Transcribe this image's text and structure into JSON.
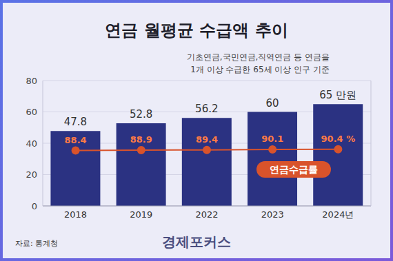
{
  "chart_data": {
    "type": "bar",
    "title": "연금 월평균 수급액 추이",
    "subtitle": [
      "기초연금,국민연금,직역연금 등 연금을",
      "1개 이상 수급한 65세 이상 인구 기준"
    ],
    "source": "자료: 통계청",
    "brand": "경제포커스",
    "categories": [
      "2018",
      "2019",
      "2022",
      "2023",
      "2024년"
    ],
    "series": [
      {
        "type": "bar",
        "color": "#2b3282",
        "values": [
          47.8,
          52.8,
          56.2,
          60,
          65
        ],
        "value_labels": [
          "47.8",
          "52.8",
          "56.2",
          "60",
          "65 만원"
        ]
      },
      {
        "name": "연금수급률",
        "type": "line",
        "axis": "y2",
        "color": "#d9532b",
        "marker": "circle",
        "values": [
          88.4,
          88.9,
          89.4,
          90.1,
          90.4
        ],
        "value_labels": [
          "88.4",
          "88.9",
          "89.4",
          "90.1",
          "90.4 %"
        ]
      }
    ],
    "ylim": [
      0,
      80
    ],
    "yticks": [
      0,
      20,
      40,
      60,
      80
    ],
    "y2lim": [
      0,
      200
    ],
    "grid": true,
    "data_labels": true
  }
}
